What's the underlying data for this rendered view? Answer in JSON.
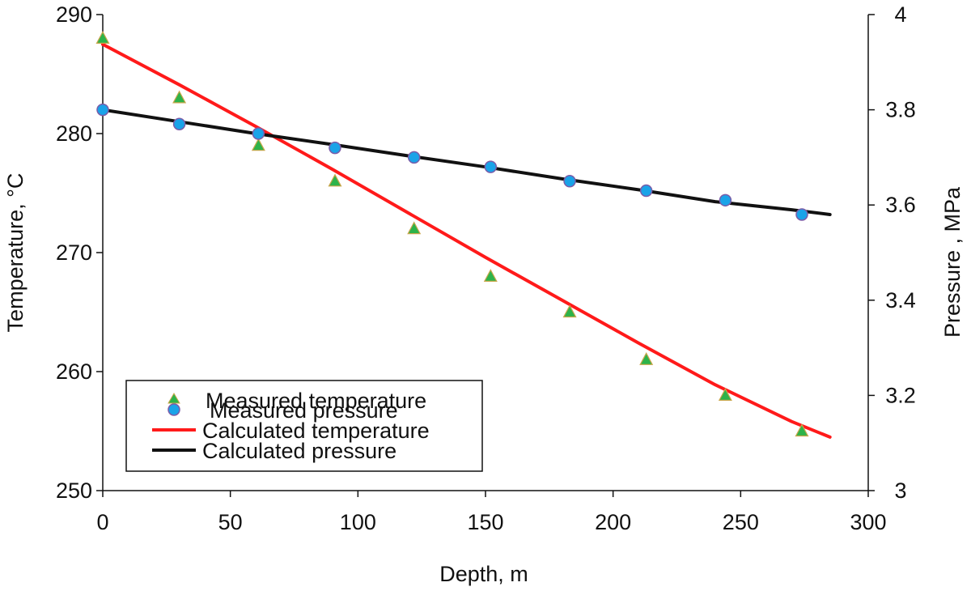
{
  "chart_data": {
    "type": "line",
    "title": "",
    "xlabel": "Depth, m",
    "ylabel": "Temperature, °C",
    "y2label": "Pressure , MPa",
    "xlim": [
      0,
      300
    ],
    "ylim": [
      250,
      290
    ],
    "y2lim": [
      3,
      4
    ],
    "x_ticks": [
      0,
      50,
      100,
      150,
      200,
      250,
      300
    ],
    "x_tick_labels": [
      "0",
      "50",
      "100",
      "150",
      "200",
      "250",
      "300"
    ],
    "y_ticks": [
      250,
      260,
      270,
      280,
      290
    ],
    "y_tick_labels": [
      "250",
      "260",
      "270",
      "280",
      "290"
    ],
    "y2_ticks": [
      3,
      3.2,
      3.4,
      3.6,
      3.8,
      4
    ],
    "y2_tick_labels": [
      "3",
      "3.2",
      "3.4",
      "3.6",
      "3.8",
      "4"
    ],
    "grid": false,
    "legend_position": "bottom-left",
    "series": [
      {
        "name": "Measured temperature",
        "kind": "scatter",
        "marker": "triangle",
        "axis": "left",
        "color": "#2db34a",
        "stroke": "#c9a64a",
        "x": [
          0,
          30,
          61,
          91,
          122,
          152,
          183,
          213,
          244,
          274
        ],
        "y": [
          288,
          283,
          279,
          276,
          272,
          268,
          265,
          261,
          258,
          255
        ]
      },
      {
        "name": "Calculated temperature",
        "kind": "line",
        "axis": "left",
        "color": "#ff1a1a",
        "x": [
          0,
          30,
          60,
          90,
          120,
          150,
          180,
          210,
          240,
          270,
          285
        ],
        "y": [
          287.5,
          284.1,
          280.6,
          277.0,
          273.3,
          269.6,
          266.0,
          262.4,
          258.9,
          255.8,
          254.5
        ]
      },
      {
        "name": "Measured pressure",
        "kind": "scatter",
        "marker": "circle",
        "axis": "right",
        "color": "#1aa3e8",
        "stroke": "#7a5ca8",
        "x": [
          0,
          30,
          61,
          91,
          122,
          152,
          183,
          213,
          244,
          274
        ],
        "y": [
          3.8,
          3.77,
          3.75,
          3.72,
          3.7,
          3.68,
          3.65,
          3.63,
          3.61,
          3.58
        ]
      },
      {
        "name": "Calculated pressure",
        "kind": "line",
        "axis": "right",
        "color": "#111111",
        "x": [
          0,
          30,
          60,
          90,
          120,
          150,
          180,
          210,
          240,
          270,
          285
        ],
        "y": [
          3.8,
          3.775,
          3.75,
          3.727,
          3.703,
          3.68,
          3.655,
          3.632,
          3.607,
          3.59,
          3.58
        ]
      }
    ]
  }
}
